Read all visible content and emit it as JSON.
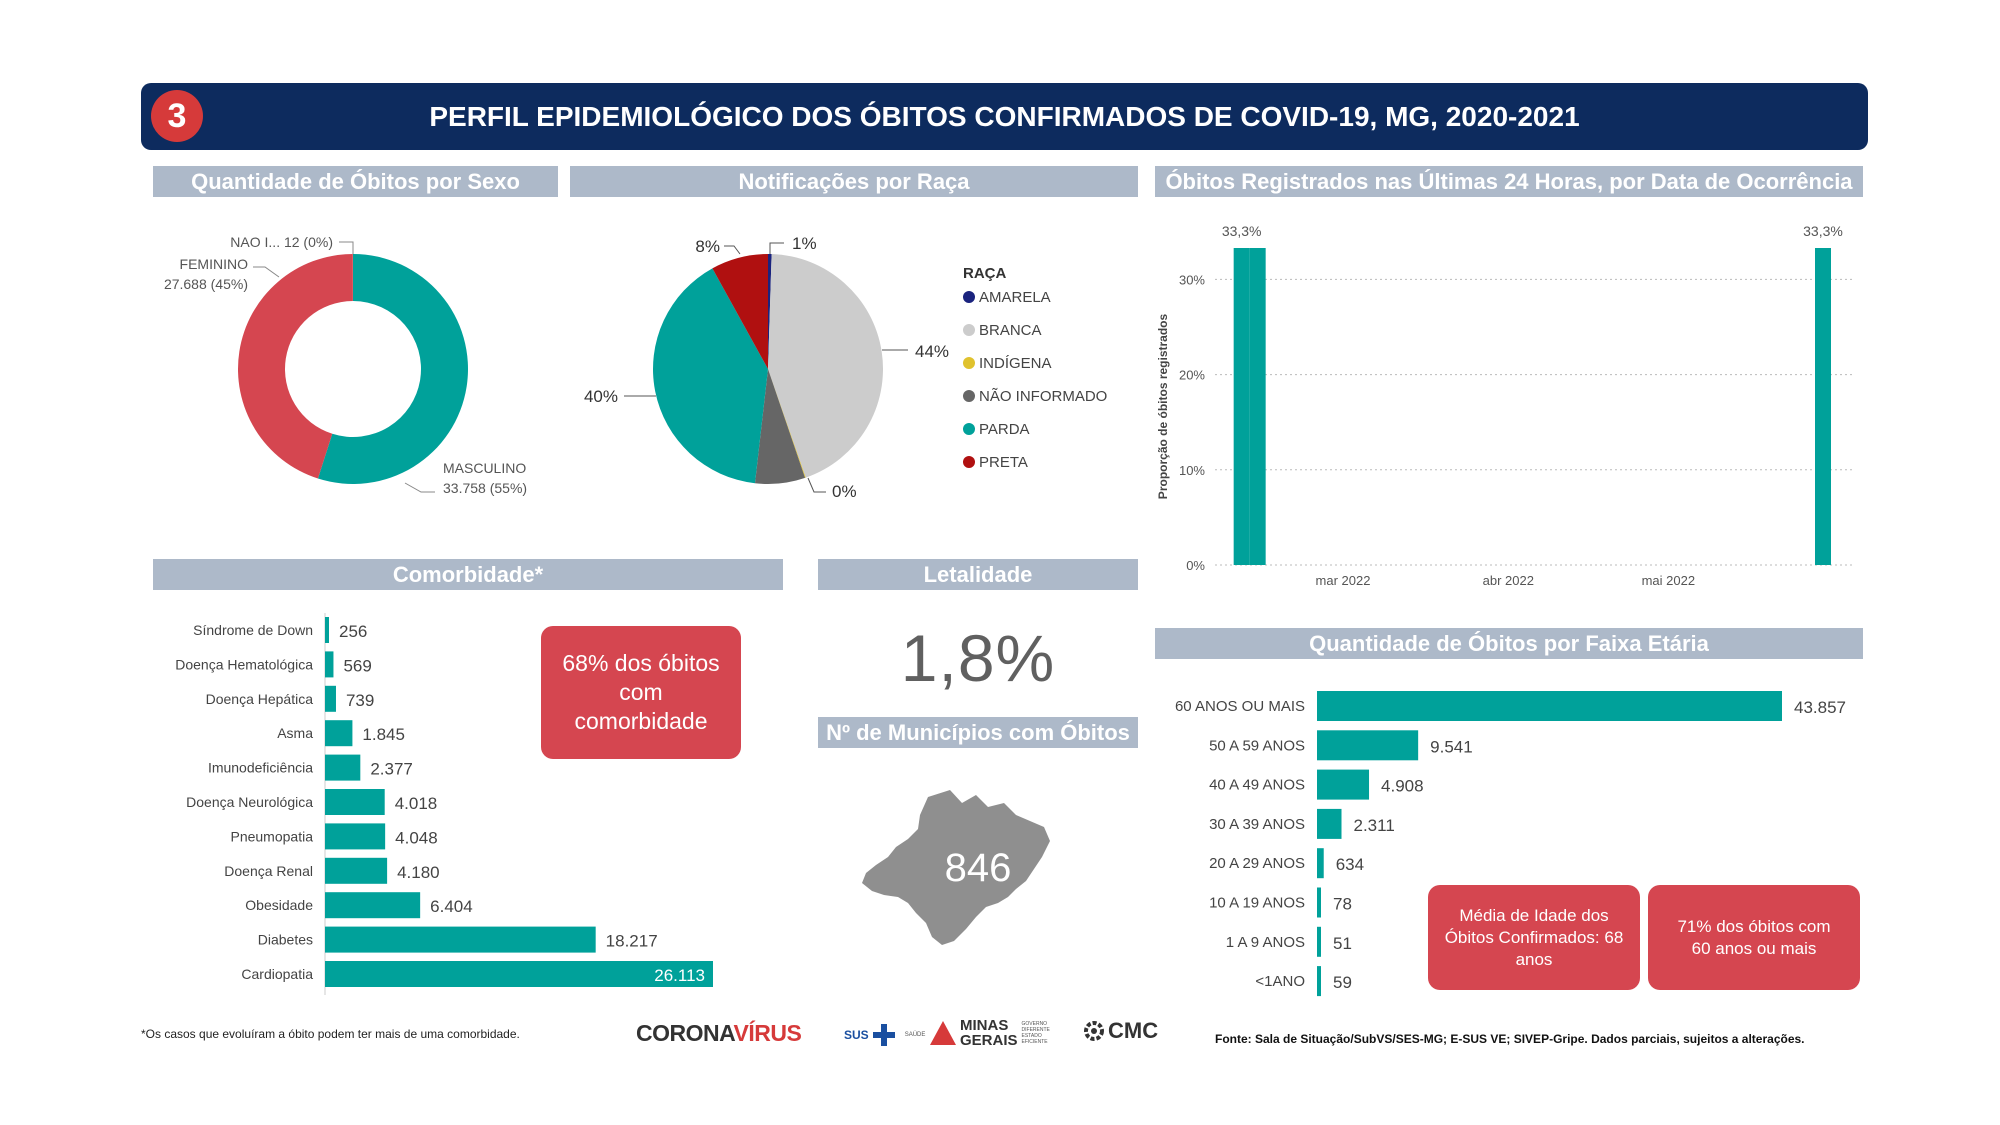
{
  "header": {
    "number": "3",
    "title": "PERFIL EPIDEMIOLÓGICO DOS ÓBITOS CONFIRMADOS DE COVID-19, MG, 2020-2021"
  },
  "sections": {
    "sexo": "Quantidade de Óbitos por Sexo",
    "raca": "Notificações por Raça",
    "ultimas24": "Óbitos Registrados nas Últimas 24 Horas, por Data de Ocorrência",
    "comorbidade": "Comorbidade*",
    "letalidade": "Letalidade",
    "municipios": "Nº de Municípios com Óbitos",
    "faixa": "Quantidade de Óbitos por Faixa Etária"
  },
  "letalidade_value": "1,8%",
  "municipios_value": "846",
  "comorb_callout": "68% dos óbitos com comorbidade",
  "idade_callout": "Média de Idade dos Óbitos Confirmados: 68 anos",
  "faixa_callout": "71% dos óbitos com 60 anos ou mais",
  "footnote": "*Os casos que evoluíram a óbito podem ter mais de uma comorbidade.",
  "source": "Fonte: Sala de Situação/SubVS/SES-MG; E-SUS VE; SIVEP-Gripe. Dados parciais, sujeitos a alterações.",
  "logos": {
    "corona1": "CORONA",
    "corona2": "VÍRUS",
    "sus": "SUS",
    "saude": "SAÚDE",
    "minas1": "MINAS",
    "minas2": "GERAIS",
    "governo": "GOVERNO DIFERENTE ESTADO EFICIENTE",
    "cmc": "CMC"
  },
  "colors": {
    "teal": "#00a19a",
    "red": "#d54650",
    "navy": "#0d2b5e",
    "grey_title": "#adb9c9"
  },
  "chart_data": [
    {
      "type": "pie",
      "title": "Quantidade de Óbitos por Sexo",
      "donut": true,
      "slices": [
        {
          "label": "MASCULINO",
          "value": 33758,
          "display": "33.758 (55%)",
          "color": "#00a19a"
        },
        {
          "label": "FEMININO",
          "value": 27688,
          "display": "27.688 (45%)",
          "color": "#d54650"
        },
        {
          "label": "NAO I...",
          "value": 12,
          "display": "12 (0%)",
          "color": "#888888"
        }
      ]
    },
    {
      "type": "pie",
      "title": "Notificações por Raça",
      "legend_title": "RAÇA",
      "legend_position": "right",
      "slices": [
        {
          "label": "AMARELA",
          "value": 0.5,
          "display": "1%",
          "color": "#1a237e"
        },
        {
          "label": "BRANCA",
          "value": 44,
          "display": "44%",
          "color": "#cccccc"
        },
        {
          "label": "INDÍGENA",
          "value": 0.1,
          "display": "0%",
          "color": "#e0c22e"
        },
        {
          "label": "NÃO INFORMADO",
          "value": 7,
          "display": "",
          "color": "#666666"
        },
        {
          "label": "PARDA",
          "value": 40,
          "display": "40%",
          "color": "#00a19a"
        },
        {
          "label": "PRETA",
          "value": 8,
          "display": "8%",
          "color": "#b01010"
        }
      ]
    },
    {
      "type": "bar",
      "title": "Óbitos Registrados nas Últimas 24 Horas, por Data de Ocorrência",
      "ylabel": "Proporção de óbitos registrados",
      "ylim": [
        0,
        33.3
      ],
      "yticks": [
        "0%",
        "10%",
        "20%",
        "30%"
      ],
      "xticks": [
        "mar 2022",
        "abr 2022",
        "mai 2022"
      ],
      "bars": [
        {
          "x": "2022-02-10",
          "value": 33.3,
          "label": "33,3%"
        },
        {
          "x": "2022-02-13",
          "value": 33.3,
          "label": ""
        },
        {
          "x": "2022-05-30",
          "value": 33.3,
          "label": "33,3%"
        }
      ],
      "grid": true
    },
    {
      "type": "bar",
      "orientation": "horizontal",
      "title": "Comorbidade*",
      "categories": [
        "Síndrome de Down",
        "Doença Hematológica",
        "Doença Hepática",
        "Asma",
        "Imunodeficiência",
        "Doença Neurológica",
        "Pneumopatia",
        "Doença Renal",
        "Obesidade",
        "Diabetes",
        "Cardiopatia"
      ],
      "values": [
        256,
        569,
        739,
        1845,
        2377,
        4018,
        4048,
        4180,
        6404,
        18217,
        26113
      ],
      "labels": [
        "256",
        "569",
        "739",
        "1.845",
        "2.377",
        "4.018",
        "4.048",
        "4.180",
        "6.404",
        "18.217",
        "26.113"
      ]
    },
    {
      "type": "bar",
      "orientation": "horizontal",
      "title": "Quantidade de Óbitos por Faixa Etária",
      "categories": [
        "60 ANOS OU MAIS",
        "50 A 59 ANOS",
        "40 A 49 ANOS",
        "30 A 39 ANOS",
        "20 A 29 ANOS",
        "10 A 19 ANOS",
        "1 A 9 ANOS",
        "<1ANO"
      ],
      "values": [
        43857,
        9541,
        4908,
        2311,
        634,
        78,
        51,
        59
      ],
      "labels": [
        "43.857",
        "9.541",
        "4.908",
        "2.311",
        "634",
        "78",
        "51",
        "59"
      ]
    }
  ]
}
